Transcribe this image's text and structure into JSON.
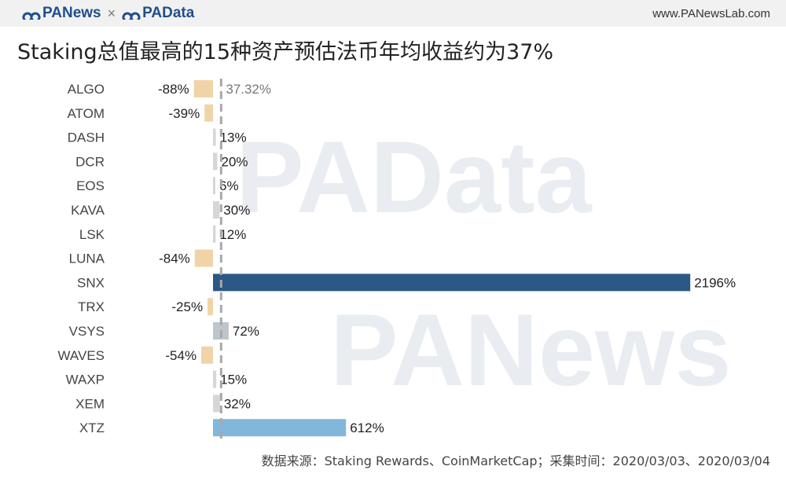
{
  "header": {
    "brand_left": "PANews",
    "brand_sep": "×",
    "brand_right": "PAData",
    "site": "www.PANewsLab.com"
  },
  "watermarks": [
    "PAData",
    "PANews"
  ],
  "chart_data": {
    "type": "bar",
    "orientation": "horizontal",
    "title": "Staking总值最高的15种资产预估法币年均收益约为37%",
    "categories": [
      "ALGO",
      "ATOM",
      "DASH",
      "DCR",
      "EOS",
      "KAVA",
      "LSK",
      "LUNA",
      "SNX",
      "TRX",
      "VSYS",
      "WAVES",
      "WAXP",
      "XEM",
      "XTZ"
    ],
    "values": [
      -88,
      -39,
      13,
      20,
      6,
      30,
      12,
      -84,
      2196,
      -25,
      72,
      -54,
      15,
      32,
      612
    ],
    "value_labels": [
      "-88%",
      "-39%",
      "13%",
      "20%",
      "6%",
      "30%",
      "12%",
      "-84%",
      "2196%",
      "-25%",
      "72%",
      "-54%",
      "15%",
      "32%",
      "612%"
    ],
    "reference_line": {
      "value": 37.32,
      "label": "37.32%"
    },
    "colors": {
      "negative": "#f0d4a8",
      "small_positive": "#d4d6d8",
      "mid_positive": "#bcc6cc",
      "SNX": "#2c5885",
      "XTZ": "#82b7dc",
      "reference": "#a8a8a8"
    },
    "source": "数据来源：Staking Rewards、CoinMarketCap；采集时间：2020/03/03、2020/03/04"
  }
}
